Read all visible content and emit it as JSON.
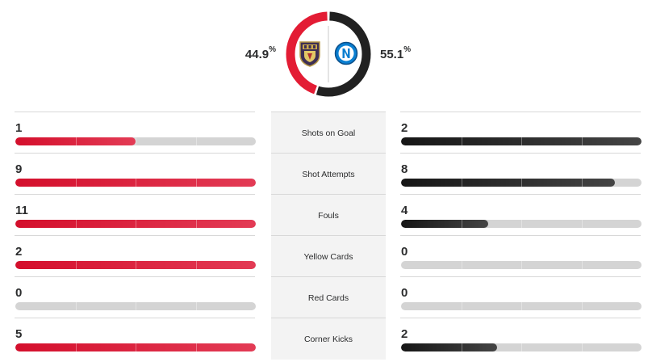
{
  "possession": {
    "home_pct": "44.9",
    "away_pct": "55.1",
    "pct_symbol": "%",
    "home_fraction": 0.449,
    "away_fraction": 0.551,
    "home_color": "#e31c34",
    "away_color": "#212121",
    "home_crest": "lecce-crest-icon",
    "away_crest": "napoli-crest-icon"
  },
  "stats": [
    {
      "label": "Shots on Goal",
      "home": "1",
      "away": "2",
      "home_fill": 0.5,
      "away_fill": 1.0
    },
    {
      "label": "Shot Attempts",
      "home": "9",
      "away": "8",
      "home_fill": 1.0,
      "away_fill": 0.89
    },
    {
      "label": "Fouls",
      "home": "11",
      "away": "4",
      "home_fill": 1.0,
      "away_fill": 0.364
    },
    {
      "label": "Yellow Cards",
      "home": "2",
      "away": "0",
      "home_fill": 1.0,
      "away_fill": 0.0
    },
    {
      "label": "Red Cards",
      "home": "0",
      "away": "0",
      "home_fill": 0.0,
      "away_fill": 0.0
    },
    {
      "label": "Corner Kicks",
      "home": "5",
      "away": "2",
      "home_fill": 1.0,
      "away_fill": 0.4
    }
  ]
}
